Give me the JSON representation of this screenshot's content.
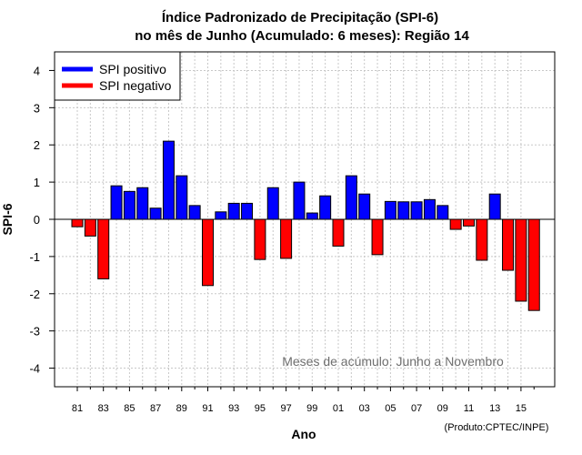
{
  "chart_data": {
    "type": "bar",
    "title": "Índice Padronizado de Precipitação (SPI-6)",
    "subtitle": "no mês de Junho (Acumulado: 6 meses): Região 14",
    "xlabel": "Ano",
    "ylabel": "SPI-6",
    "ylim": [
      -4.5,
      4.5
    ],
    "yticks": [
      -4,
      -3,
      -2,
      -1,
      0,
      1,
      2,
      3,
      4
    ],
    "grid": true,
    "years": [
      "81",
      "82",
      "83",
      "84",
      "85",
      "86",
      "87",
      "88",
      "89",
      "90",
      "91",
      "92",
      "93",
      "94",
      "95",
      "96",
      "97",
      "98",
      "99",
      "00",
      "01",
      "02",
      "03",
      "04",
      "05",
      "06",
      "07",
      "08",
      "09",
      "10",
      "11",
      "12",
      "13",
      "14",
      "15",
      "16"
    ],
    "xtick_labels": [
      "81",
      "83",
      "85",
      "87",
      "89",
      "91",
      "93",
      "95",
      "97",
      "99",
      "01",
      "03",
      "05",
      "07",
      "09",
      "11",
      "13",
      "15"
    ],
    "values": [
      -0.2,
      -0.45,
      -1.6,
      0.9,
      0.75,
      0.85,
      0.3,
      2.1,
      1.17,
      0.37,
      -1.78,
      0.2,
      0.43,
      0.43,
      -1.08,
      0.85,
      -1.05,
      1.0,
      0.17,
      0.63,
      -0.72,
      1.17,
      0.68,
      -0.95,
      0.48,
      0.47,
      0.47,
      0.53,
      0.37,
      -0.27,
      -0.18,
      -1.1,
      0.68,
      -1.37,
      -2.2,
      -2.45
    ],
    "series": [
      {
        "name": "SPI positivo",
        "color": "#0000ff"
      },
      {
        "name": "SPI negativo",
        "color": "#ff0000"
      }
    ],
    "legend_position": "top-left",
    "annotation": "Meses de acúmulo: Junho a Novembro",
    "credit": "(Produto:CPTEC/INPE)"
  }
}
